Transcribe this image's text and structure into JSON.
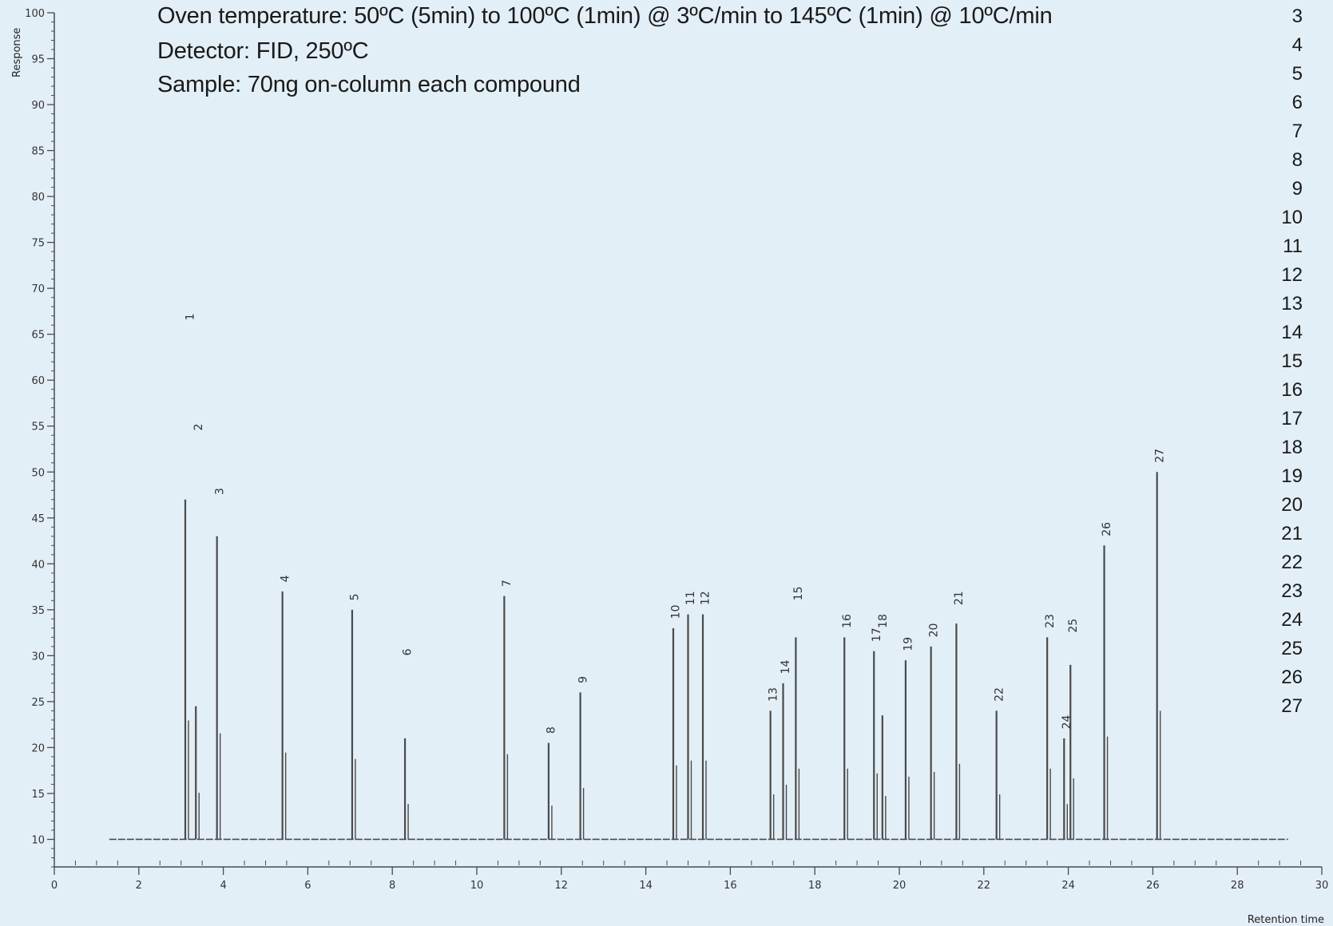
{
  "conditions": [
    "Oven temperature: 50ºC (5min) to 100ºC (1min) @ 3ºC/min to 145ºC (1min) @ 10ºC/min",
    "Detector: FID, 250ºC",
    "Sample: 70ng on-column each compound"
  ],
  "legend_numbers": [
    "3",
    "4",
    "5",
    "6",
    "7",
    "8",
    "9",
    "10",
    "11",
    "12",
    "13",
    "14",
    "15",
    "16",
    "17",
    "18",
    "19",
    "20",
    "21",
    "22",
    "23",
    "24",
    "25",
    "26",
    "27"
  ],
  "chart_data": {
    "type": "line",
    "title": "",
    "xlabel": "Retention time",
    "ylabel": "Response",
    "xlim": [
      0,
      30
    ],
    "ylim": [
      7,
      100
    ],
    "x_ticks": [
      0,
      2,
      4,
      6,
      8,
      10,
      12,
      14,
      16,
      18,
      20,
      22,
      24,
      26,
      28,
      30
    ],
    "x_tick_labels": [
      "0",
      "2",
      "4",
      "6",
      "8",
      "10",
      "12",
      "14",
      "16",
      "18",
      "20",
      "22",
      "24",
      "26",
      "28",
      "30"
    ],
    "y_ticks": [
      10,
      15,
      20,
      25,
      30,
      35,
      40,
      45,
      50,
      55,
      60,
      65,
      70,
      75,
      80,
      85,
      90,
      95,
      100
    ],
    "y_tick_labels": [
      "10",
      "15",
      "20",
      "25",
      "30",
      "35",
      "40",
      "45",
      "50",
      "55",
      "60",
      "65",
      "70",
      "75",
      "80",
      "85",
      "90",
      "95",
      "100"
    ],
    "baseline": 10,
    "peaks": [
      {
        "x": 3.1,
        "y": 47
      },
      {
        "x": 3.35,
        "y": 24.5
      },
      {
        "x": 3.85,
        "y": 43
      },
      {
        "x": 5.4,
        "y": 37
      },
      {
        "x": 7.05,
        "y": 35
      },
      {
        "x": 8.3,
        "y": 21
      },
      {
        "x": 10.65,
        "y": 36.5
      },
      {
        "x": 11.7,
        "y": 20.5
      },
      {
        "x": 12.45,
        "y": 26
      },
      {
        "x": 14.65,
        "y": 33
      },
      {
        "x": 15.0,
        "y": 34.5
      },
      {
        "x": 15.35,
        "y": 34.5
      },
      {
        "x": 16.95,
        "y": 24
      },
      {
        "x": 17.25,
        "y": 27
      },
      {
        "x": 17.55,
        "y": 32
      },
      {
        "x": 18.7,
        "y": 32
      },
      {
        "x": 19.4,
        "y": 30.5
      },
      {
        "x": 19.6,
        "y": 23.5
      },
      {
        "x": 20.15,
        "y": 29.5
      },
      {
        "x": 20.75,
        "y": 31
      },
      {
        "x": 21.35,
        "y": 33.5
      },
      {
        "x": 22.3,
        "y": 24
      },
      {
        "x": 23.5,
        "y": 32
      },
      {
        "x": 23.9,
        "y": 21
      },
      {
        "x": 24.05,
        "y": 29
      },
      {
        "x": 24.85,
        "y": 42
      },
      {
        "x": 26.1,
        "y": 50
      }
    ],
    "peak_labels": [
      {
        "text": "1",
        "x": 3.2,
        "y": 66.5
      },
      {
        "text": "2",
        "x": 3.4,
        "y": 54.5
      },
      {
        "text": "3",
        "x": 3.9,
        "y": 47.5
      },
      {
        "text": "4",
        "x": 5.45,
        "y": 38
      },
      {
        "text": "5",
        "x": 7.1,
        "y": 36
      },
      {
        "text": "6",
        "x": 8.35,
        "y": 30
      },
      {
        "text": "7",
        "x": 10.7,
        "y": 37.5
      },
      {
        "text": "8",
        "x": 11.75,
        "y": 21.5
      },
      {
        "text": "9",
        "x": 12.5,
        "y": 27
      },
      {
        "text": "10",
        "x": 14.7,
        "y": 34
      },
      {
        "text": "11",
        "x": 15.05,
        "y": 35.5
      },
      {
        "text": "12",
        "x": 15.4,
        "y": 35.5
      },
      {
        "text": "13",
        "x": 17.0,
        "y": 25
      },
      {
        "text": "14",
        "x": 17.3,
        "y": 28
      },
      {
        "text": "15",
        "x": 17.6,
        "y": 36
      },
      {
        "text": "16",
        "x": 18.75,
        "y": 33
      },
      {
        "text": "17",
        "x": 19.45,
        "y": 31.5
      },
      {
        "text": "18",
        "x": 19.6,
        "y": 33
      },
      {
        "text": "19",
        "x": 20.2,
        "y": 30.5
      },
      {
        "text": "20",
        "x": 20.8,
        "y": 32
      },
      {
        "text": "21",
        "x": 21.4,
        "y": 35.5
      },
      {
        "text": "22",
        "x": 22.35,
        "y": 25
      },
      {
        "text": "23",
        "x": 23.55,
        "y": 33
      },
      {
        "text": "24",
        "x": 23.95,
        "y": 22
      },
      {
        "text": "25",
        "x": 24.1,
        "y": 32.5
      },
      {
        "text": "26",
        "x": 24.9,
        "y": 43
      },
      {
        "text": "27",
        "x": 26.15,
        "y": 51
      }
    ]
  }
}
